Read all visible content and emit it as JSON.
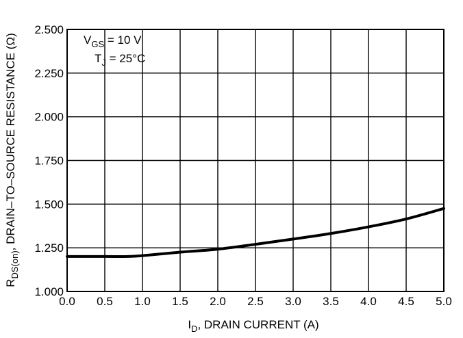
{
  "chart_data": {
    "type": "line",
    "xlabel": {
      "main": "I",
      "sub": "D",
      "rest": ", DRAIN CURRENT (A)"
    },
    "ylabel": {
      "main": "R",
      "sub": "DS(on)",
      "rest": ", DRAIN–TO–SOURCE RESISTANCE (Ω)"
    },
    "xlim": [
      0,
      5
    ],
    "ylim": [
      1.0,
      2.5
    ],
    "x_ticks": [
      "0.0",
      "0.5",
      "1.0",
      "1.5",
      "2.0",
      "2.5",
      "3.0",
      "3.5",
      "4.0",
      "4.5",
      "5.0"
    ],
    "y_ticks": [
      "1.000",
      "1.250",
      "1.500",
      "1.750",
      "2.000",
      "2.250",
      "2.500"
    ],
    "grid": true,
    "annotations": {
      "vgs": {
        "main": "V",
        "sub": "GS",
        "rest": " = 10 V"
      },
      "tj": {
        "main": "T",
        "sub": "J",
        "rest": " = 25°C"
      }
    },
    "series": [
      {
        "x": [
          0.0,
          0.5,
          0.8,
          1.0,
          1.5,
          2.0,
          2.5,
          3.0,
          3.5,
          4.0,
          4.5,
          5.0
        ],
        "values": [
          1.2,
          1.2,
          1.2,
          1.205,
          1.225,
          1.242,
          1.27,
          1.3,
          1.332,
          1.37,
          1.415,
          1.475
        ]
      }
    ]
  }
}
